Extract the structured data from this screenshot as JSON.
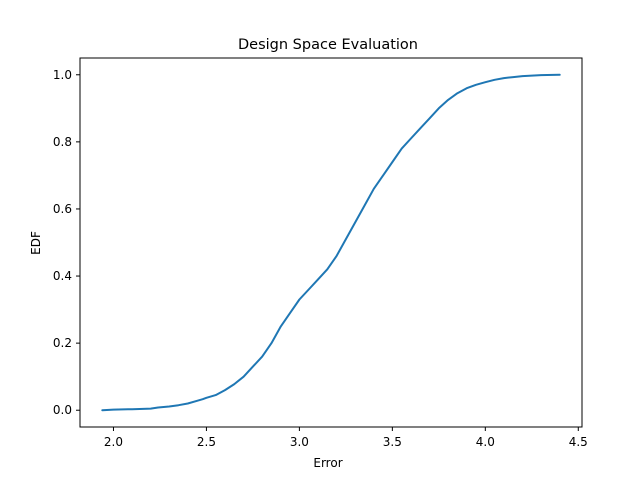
{
  "chart_data": {
    "type": "line",
    "title": "Design Space Evaluation",
    "xlabel": "Error",
    "ylabel": "EDF",
    "xlim": [
      1.82,
      4.52
    ],
    "ylim": [
      -0.05,
      1.05
    ],
    "x_ticks": [
      2.0,
      2.5,
      3.0,
      3.5,
      4.0,
      4.5
    ],
    "x_tick_labels": [
      "2.0",
      "2.5",
      "3.0",
      "3.5",
      "4.0",
      "4.5"
    ],
    "y_ticks": [
      0.0,
      0.2,
      0.4,
      0.6,
      0.8,
      1.0
    ],
    "y_tick_labels": [
      "0.0",
      "0.2",
      "0.4",
      "0.6",
      "0.8",
      "1.0"
    ],
    "grid": false,
    "line_color": "#1f77b4",
    "series": [
      {
        "x": [
          1.94,
          2.0,
          2.1,
          2.2,
          2.24,
          2.3,
          2.35,
          2.4,
          2.45,
          2.48,
          2.5,
          2.55,
          2.6,
          2.65,
          2.7,
          2.75,
          2.8,
          2.85,
          2.9,
          2.95,
          3.0,
          3.05,
          3.1,
          3.15,
          3.2,
          3.25,
          3.3,
          3.35,
          3.4,
          3.45,
          3.5,
          3.55,
          3.6,
          3.65,
          3.7,
          3.75,
          3.8,
          3.85,
          3.9,
          3.95,
          4.0,
          4.05,
          4.1,
          4.15,
          4.2,
          4.3,
          4.4
        ],
        "y": [
          0.0,
          0.002,
          0.003,
          0.005,
          0.008,
          0.011,
          0.015,
          0.02,
          0.028,
          0.033,
          0.037,
          0.045,
          0.06,
          0.078,
          0.1,
          0.13,
          0.16,
          0.2,
          0.25,
          0.29,
          0.33,
          0.36,
          0.39,
          0.42,
          0.46,
          0.51,
          0.56,
          0.61,
          0.66,
          0.7,
          0.74,
          0.78,
          0.81,
          0.84,
          0.87,
          0.9,
          0.925,
          0.945,
          0.96,
          0.97,
          0.978,
          0.985,
          0.99,
          0.993,
          0.996,
          0.999,
          1.0
        ]
      }
    ]
  }
}
